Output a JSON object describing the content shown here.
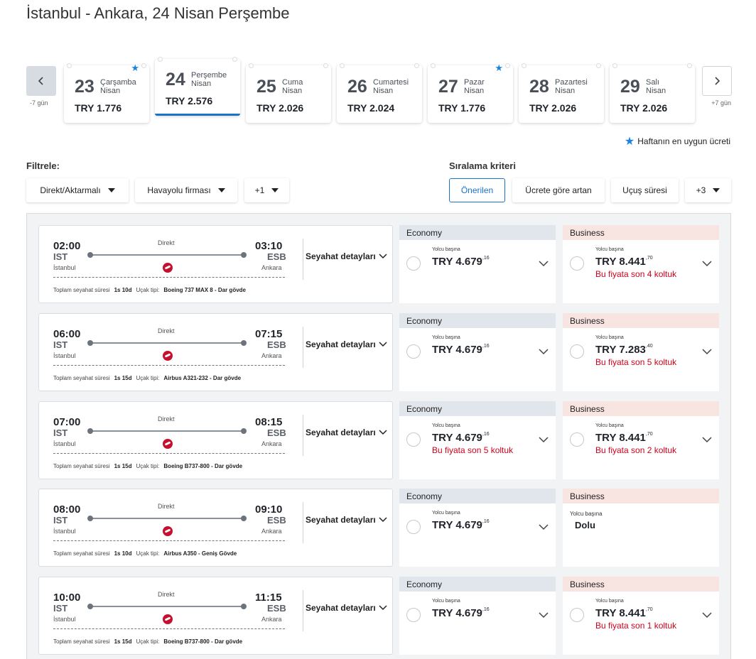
{
  "page_title": "İstanbul - Ankara, 24 Nisan Perşembe",
  "date_nav": {
    "prev_label": "-7 gün",
    "next_label": "+7 gün"
  },
  "days": [
    {
      "num": "23",
      "day": "Çarşamba",
      "month": "Nisan",
      "price": "TRY 1.776",
      "best": true,
      "selected": false
    },
    {
      "num": "24",
      "day": "Perşembe",
      "month": "Nisan",
      "price": "TRY 2.576",
      "best": false,
      "selected": true
    },
    {
      "num": "25",
      "day": "Cuma",
      "month": "Nisan",
      "price": "TRY 2.026",
      "best": false,
      "selected": false
    },
    {
      "num": "26",
      "day": "Cumartesi",
      "month": "Nisan",
      "price": "TRY 2.024",
      "best": false,
      "selected": false
    },
    {
      "num": "27",
      "day": "Pazar",
      "month": "Nisan",
      "price": "TRY 1.776",
      "best": true,
      "selected": false
    },
    {
      "num": "28",
      "day": "Pazartesi",
      "month": "Nisan",
      "price": "TRY 2.026",
      "best": false,
      "selected": false
    },
    {
      "num": "29",
      "day": "Salı",
      "month": "Nisan",
      "price": "TRY 2.026",
      "best": false,
      "selected": false
    }
  ],
  "legend": "Haftanın en uygun ücreti",
  "filters": {
    "title": "Filtrele:",
    "items": [
      "Direkt/Aktarmalı",
      "Havayolu firması",
      "+1"
    ]
  },
  "sort": {
    "title": "Sıralama kriteri",
    "items": [
      "Önerilen",
      "Ücrete göre artan",
      "Uçuş süresi",
      "+3"
    ],
    "active": "Önerilen"
  },
  "labels": {
    "direct": "Direkt",
    "details": "Seyahat detayları",
    "economy": "Economy",
    "business": "Business",
    "per_passenger": "Yolcu başına",
    "total_time": "Toplam seyahat süresi",
    "aircraft": "Uçak tipi:",
    "sold_out": "Dolu"
  },
  "flights": [
    {
      "dep_time": "02:00",
      "dep_code": "IST",
      "dep_city": "İstanbul",
      "arr_time": "03:10",
      "arr_code": "ESB",
      "arr_city": "Ankara",
      "duration": "1s 10d",
      "aircraft": "Boeing 737 MAX 8 - Dar gövde",
      "eco_price": "TRY 4.679",
      "eco_cents": "16",
      "eco_seats": "",
      "bus_price": "TRY 8.441",
      "bus_cents": "70",
      "bus_seats": "Bu fiyata son 4 koltuk",
      "bus_sold": false
    },
    {
      "dep_time": "06:00",
      "dep_code": "IST",
      "dep_city": "İstanbul",
      "arr_time": "07:15",
      "arr_code": "ESB",
      "arr_city": "Ankara",
      "duration": "1s 15d",
      "aircraft": "Airbus A321-232 - Dar gövde",
      "eco_price": "TRY 4.679",
      "eco_cents": "16",
      "eco_seats": "",
      "bus_price": "TRY 7.283",
      "bus_cents": "40",
      "bus_seats": "Bu fiyata son 5 koltuk",
      "bus_sold": false
    },
    {
      "dep_time": "07:00",
      "dep_code": "IST",
      "dep_city": "İstanbul",
      "arr_time": "08:15",
      "arr_code": "ESB",
      "arr_city": "Ankara",
      "duration": "1s 15d",
      "aircraft": "Boeing B737-800 - Dar gövde",
      "eco_price": "TRY 4.679",
      "eco_cents": "16",
      "eco_seats": "Bu fiyata son 5 koltuk",
      "bus_price": "TRY 8.441",
      "bus_cents": "70",
      "bus_seats": "Bu fiyata son 2 koltuk",
      "bus_sold": false
    },
    {
      "dep_time": "08:00",
      "dep_code": "IST",
      "dep_city": "İstanbul",
      "arr_time": "09:10",
      "arr_code": "ESB",
      "arr_city": "Ankara",
      "duration": "1s 10d",
      "aircraft": "Airbus A350 - Geniş Gövde",
      "eco_price": "TRY 4.679",
      "eco_cents": "16",
      "eco_seats": "",
      "bus_price": "",
      "bus_cents": "",
      "bus_seats": "",
      "bus_sold": true
    },
    {
      "dep_time": "10:00",
      "dep_code": "IST",
      "dep_city": "İstanbul",
      "arr_time": "11:15",
      "arr_code": "ESB",
      "arr_city": "Ankara",
      "duration": "1s 15d",
      "aircraft": "Boeing B737-800 - Dar gövde",
      "eco_price": "TRY 4.679",
      "eco_cents": "16",
      "eco_seats": "",
      "bus_price": "TRY 8.441",
      "bus_cents": "70",
      "bus_seats": "Bu fiyata son 1 koltuk",
      "bus_sold": false
    }
  ],
  "colors": {
    "accent": "#1b73c9",
    "star": "#1b84e0",
    "warning": "#d0021b",
    "economy_header": "#e1e5ec",
    "business_header": "#f8e5e2"
  }
}
